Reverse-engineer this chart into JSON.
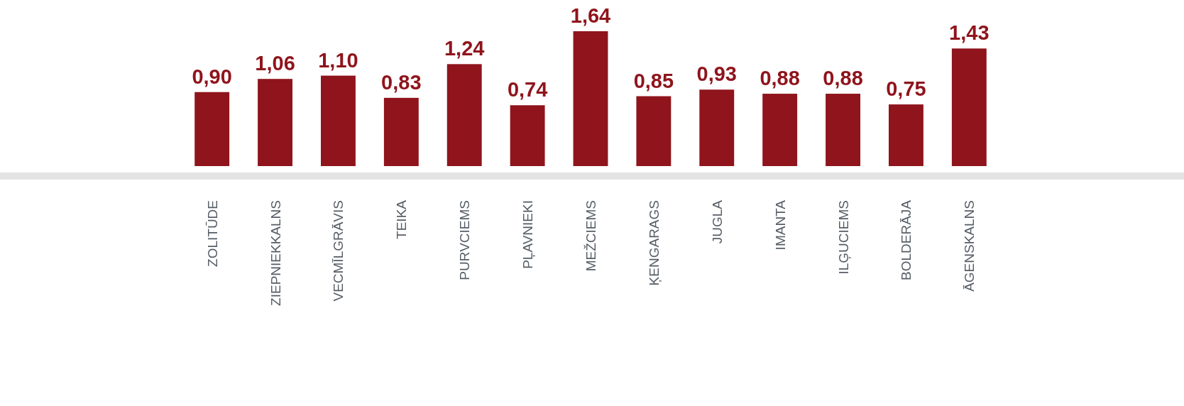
{
  "chart_data": {
    "type": "bar",
    "categories": [
      "ZOLITŪDE",
      "ZIEPNIEKKALNS",
      "VECMĪLGRĀVIS",
      "TEIKA",
      "PURVCIEMS",
      "PĻAVNIEKI",
      "MEŽCIEMS",
      "ĶENGARAGS",
      "JUGLA",
      "IMANTA",
      "ILĢUCIEMS",
      "BOLDERĀJA",
      "ĀGENSKALNS"
    ],
    "values": [
      0.9,
      1.06,
      1.1,
      0.83,
      1.24,
      0.74,
      1.64,
      0.85,
      0.93,
      0.88,
      0.88,
      0.75,
      1.43
    ],
    "value_labels": [
      "0,90",
      "1,06",
      "1,10",
      "0,83",
      "1,24",
      "0,74",
      "1,64",
      "0,85",
      "0,93",
      "0,88",
      "0,88",
      "0,75",
      "1,43"
    ],
    "color": "#8f141c"
  }
}
